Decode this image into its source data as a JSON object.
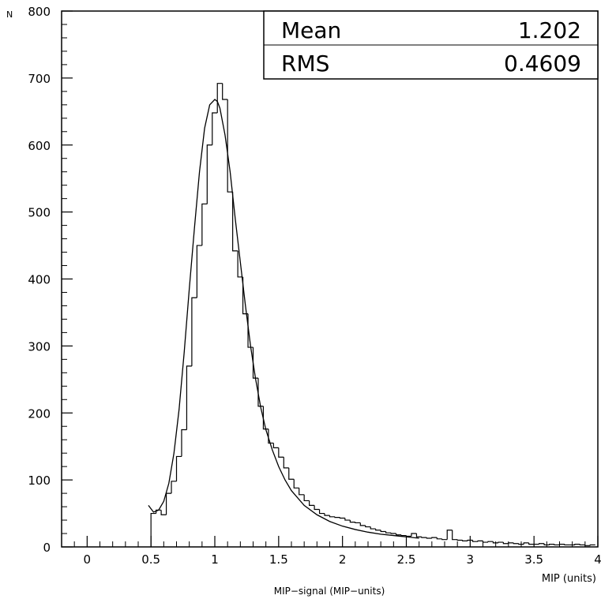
{
  "chart_data": {
    "type": "histogram",
    "ylabel": "N",
    "xlabel": "MIP (units)",
    "caption": "MIP−signal (MIP−units)",
    "xlim": [
      -0.2,
      4.0
    ],
    "ylim": [
      0,
      800
    ],
    "x_ticks": [
      {
        "value": 0,
        "label": "0"
      },
      {
        "value": 0.5,
        "label": "0.5"
      },
      {
        "value": 1,
        "label": "1"
      },
      {
        "value": 1.5,
        "label": "1.5"
      },
      {
        "value": 2,
        "label": "2"
      },
      {
        "value": 2.5,
        "label": "2.5"
      },
      {
        "value": 3,
        "label": "3"
      },
      {
        "value": 3.5,
        "label": "3.5"
      },
      {
        "value": 4,
        "label": "4"
      }
    ],
    "y_ticks": [
      {
        "value": 0,
        "label": "0"
      },
      {
        "value": 100,
        "label": "100"
      },
      {
        "value": 200,
        "label": "200"
      },
      {
        "value": 300,
        "label": "300"
      },
      {
        "value": 400,
        "label": "400"
      },
      {
        "value": 500,
        "label": "500"
      },
      {
        "value": 600,
        "label": "600"
      },
      {
        "value": 700,
        "label": "700"
      },
      {
        "value": 800,
        "label": "800"
      }
    ],
    "stats": [
      {
        "label": "Mean",
        "value": "1.202"
      },
      {
        "label": "RMS",
        "value": "0.4609"
      }
    ],
    "histogram": {
      "bin_width": 0.04,
      "bin_start": 0.5,
      "counts": [
        50,
        55,
        48,
        80,
        98,
        135,
        175,
        270,
        372,
        450,
        512,
        600,
        648,
        692,
        668,
        530,
        442,
        403,
        348,
        298,
        252,
        210,
        176,
        155,
        148,
        134,
        118,
        101,
        88,
        78,
        69,
        62,
        56,
        50,
        47,
        45,
        44,
        43,
        40,
        37,
        36,
        32,
        30,
        27,
        25,
        23,
        21,
        20,
        18,
        17,
        16,
        20,
        15,
        14,
        13,
        14,
        12,
        11,
        25,
        11,
        10,
        9,
        10,
        8,
        9,
        7,
        8,
        6,
        7,
        5,
        6,
        5,
        4,
        6,
        4,
        4,
        5,
        3,
        4,
        3,
        4,
        3,
        3,
        4,
        3,
        2,
        3
      ]
    },
    "fit_curve": {
      "x": [
        0.48,
        0.52,
        0.56,
        0.6,
        0.64,
        0.68,
        0.72,
        0.76,
        0.8,
        0.84,
        0.88,
        0.92,
        0.96,
        1.0,
        1.02,
        1.04,
        1.08,
        1.12,
        1.16,
        1.2,
        1.24,
        1.28,
        1.32,
        1.36,
        1.4,
        1.45,
        1.5,
        1.55,
        1.6,
        1.7,
        1.8,
        1.9,
        2.0,
        2.1,
        2.2,
        2.3,
        2.4,
        2.5,
        2.6
      ],
      "y": [
        62,
        52,
        55,
        68,
        95,
        140,
        205,
        290,
        385,
        475,
        560,
        625,
        660,
        668,
        665,
        655,
        615,
        560,
        490,
        425,
        360,
        300,
        250,
        208,
        175,
        145,
        120,
        100,
        84,
        62,
        48,
        38,
        31,
        26,
        22,
        19,
        17,
        15,
        13
      ]
    }
  }
}
